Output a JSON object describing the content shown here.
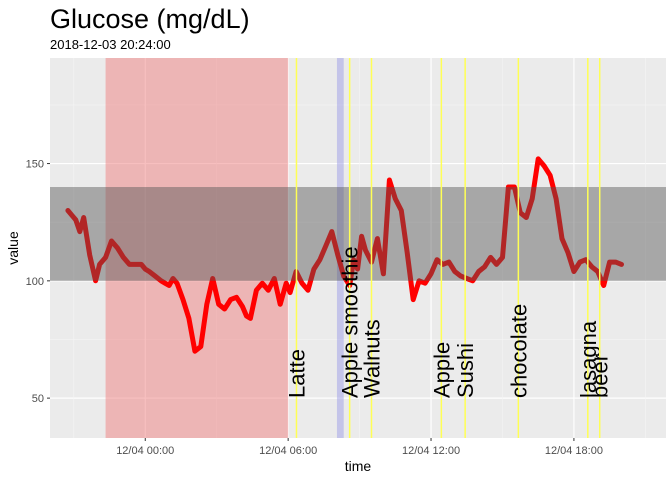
{
  "chart_data": {
    "type": "line",
    "title": "Glucose (mg/dL)",
    "subtitle": "2018-12-03 20:24:00",
    "xlabel": "time",
    "ylabel": "value",
    "xlim": [
      "2018-12-03 20:00",
      "2018-12-04 21:52"
    ],
    "ylim": [
      33,
      195
    ],
    "y_ticks": [
      50,
      100,
      150
    ],
    "x_ticks": [
      {
        "time": "2018-12-04 00:00",
        "label": "12/04 00:00"
      },
      {
        "time": "2018-12-04 06:00",
        "label": "12/04 06:00"
      },
      {
        "time": "2018-12-04 12:00",
        "label": "12/04 12:00"
      },
      {
        "time": "2018-12-04 18:00",
        "label": "12/04 18:00"
      }
    ],
    "grid": true,
    "target_range": {
      "ymin": 100,
      "ymax": 140,
      "color": "#a6a6a6"
    },
    "shaded_periods": [
      {
        "start": "2018-12-03 22:20",
        "end": "2018-12-04 06:00",
        "color": "#f08080"
      },
      {
        "start": "2018-12-04 08:03",
        "end": "2018-12-04 08:20",
        "color": "#9d9de8"
      }
    ],
    "annotations": [
      {
        "time": "2018-12-04 06:21",
        "label": "Latte"
      },
      {
        "time": "2018-12-04 08:35",
        "label": "Apple smoothie"
      },
      {
        "time": "2018-12-04 09:30",
        "label": "Walnuts"
      },
      {
        "time": "2018-12-04 12:26",
        "label": "Apple"
      },
      {
        "time": "2018-12-04 13:26",
        "label": "Sushi"
      },
      {
        "time": "2018-12-04 15:40",
        "label": "chocolate"
      },
      {
        "time": "2018-12-04 18:35",
        "label": "lasagna"
      },
      {
        "time": "2018-12-04 19:05",
        "label": "beer"
      }
    ],
    "series": [
      {
        "color": "#ff0000",
        "x": [
          "2018-12-03 20:45",
          "2018-12-03 20:55",
          "2018-12-03 21:05",
          "2018-12-03 21:15",
          "2018-12-03 21:25",
          "2018-12-03 21:40",
          "2018-12-03 21:55",
          "2018-12-03 22:05",
          "2018-12-03 22:20",
          "2018-12-03 22:35",
          "2018-12-03 22:50",
          "2018-12-03 23:05",
          "2018-12-03 23:20",
          "2018-12-03 23:35",
          "2018-12-03 23:50",
          "2018-12-04 00:00",
          "2018-12-04 00:10",
          "2018-12-04 00:25",
          "2018-12-04 00:40",
          "2018-12-04 00:50",
          "2018-12-04 01:00",
          "2018-12-04 01:10",
          "2018-12-04 01:20",
          "2018-12-04 01:35",
          "2018-12-04 01:50",
          "2018-12-04 02:05",
          "2018-12-04 02:20",
          "2018-12-04 02:35",
          "2018-12-04 02:50",
          "2018-12-04 03:05",
          "2018-12-04 03:20",
          "2018-12-04 03:35",
          "2018-12-04 03:50",
          "2018-12-04 04:05",
          "2018-12-04 04:15",
          "2018-12-04 04:25",
          "2018-12-04 04:40",
          "2018-12-04 04:55",
          "2018-12-04 05:10",
          "2018-12-04 05:25",
          "2018-12-04 05:40",
          "2018-12-04 05:55",
          "2018-12-04 06:05",
          "2018-12-04 06:20",
          "2018-12-04 06:35",
          "2018-12-04 06:50",
          "2018-12-04 07:05",
          "2018-12-04 07:20",
          "2018-12-04 07:35",
          "2018-12-04 07:50",
          "2018-12-04 08:05",
          "2018-12-04 08:20",
          "2018-12-04 08:35",
          "2018-12-04 08:45",
          "2018-12-04 08:55",
          "2018-12-04 09:05",
          "2018-12-04 09:15",
          "2018-12-04 09:30",
          "2018-12-04 09:45",
          "2018-12-04 10:00",
          "2018-12-04 10:15",
          "2018-12-04 10:30",
          "2018-12-04 10:45",
          "2018-12-04 11:00",
          "2018-12-04 11:15",
          "2018-12-04 11:30",
          "2018-12-04 11:45",
          "2018-12-04 12:00",
          "2018-12-04 12:15",
          "2018-12-04 12:30",
          "2018-12-04 12:45",
          "2018-12-04 13:00",
          "2018-12-04 13:15",
          "2018-12-04 13:30",
          "2018-12-04 13:45",
          "2018-12-04 14:00",
          "2018-12-04 14:15",
          "2018-12-04 14:30",
          "2018-12-04 14:45",
          "2018-12-04 15:00",
          "2018-12-04 15:15",
          "2018-12-04 15:30",
          "2018-12-04 15:45",
          "2018-12-04 16:00",
          "2018-12-04 16:15",
          "2018-12-04 16:30",
          "2018-12-04 16:45",
          "2018-12-04 17:00",
          "2018-12-04 17:15",
          "2018-12-04 17:30",
          "2018-12-04 17:45",
          "2018-12-04 18:00",
          "2018-12-04 18:15",
          "2018-12-04 18:30",
          "2018-12-04 18:45",
          "2018-12-04 19:00",
          "2018-12-04 19:15",
          "2018-12-04 19:30",
          "2018-12-04 19:45",
          "2018-12-04 20:00"
        ],
        "values": [
          130,
          128,
          126,
          121,
          127,
          111,
          100,
          107,
          110,
          117,
          114,
          110,
          107,
          107,
          107,
          105,
          104,
          102,
          100,
          99,
          98,
          101,
          99,
          92,
          84,
          70,
          72,
          90,
          101,
          90,
          88,
          92,
          93,
          89,
          85,
          84,
          96,
          99,
          96,
          101,
          90,
          99,
          95,
          104,
          99,
          96,
          105,
          109,
          115,
          121,
          111,
          102,
          98,
          109,
          105,
          119,
          113,
          108,
          118,
          103,
          143,
          135,
          130,
          112,
          92,
          100,
          99,
          103,
          109,
          107,
          108,
          104,
          102,
          101,
          100,
          104,
          106,
          110,
          107,
          110,
          140,
          140,
          129,
          127,
          135,
          152,
          149,
          145,
          135,
          118,
          112,
          104,
          108,
          109,
          106,
          104,
          98,
          108,
          108,
          107
        ]
      }
    ]
  }
}
